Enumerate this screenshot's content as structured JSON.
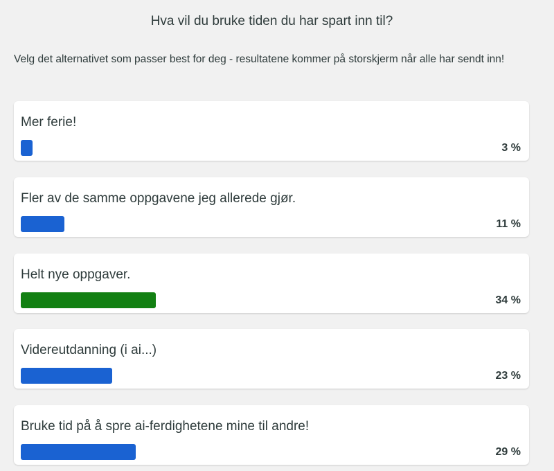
{
  "poll": {
    "title": "Hva vil du bruke tiden du har spart inn til?",
    "subtitle": "Velg det alternativet som passer best for deg - resultatene kommer på storskjerm når alle har sendt inn!",
    "colors": {
      "default": "#1a62d2",
      "leading": "#128012"
    },
    "options": [
      {
        "label": "Mer ferie!",
        "percent": 3,
        "percent_label": "3 %",
        "leading": false
      },
      {
        "label": "Fler av de samme oppgavene jeg allerede gjør.",
        "percent": 11,
        "percent_label": "11 %",
        "leading": false
      },
      {
        "label": "Helt nye oppgaver.",
        "percent": 34,
        "percent_label": "34 %",
        "leading": true
      },
      {
        "label": "Videreutdanning (i ai...)",
        "percent": 23,
        "percent_label": "23 %",
        "leading": false
      },
      {
        "label": "Bruke tid på å spre ai-ferdighetene mine til andre!",
        "percent": 29,
        "percent_label": "29 %",
        "leading": false
      }
    ]
  }
}
